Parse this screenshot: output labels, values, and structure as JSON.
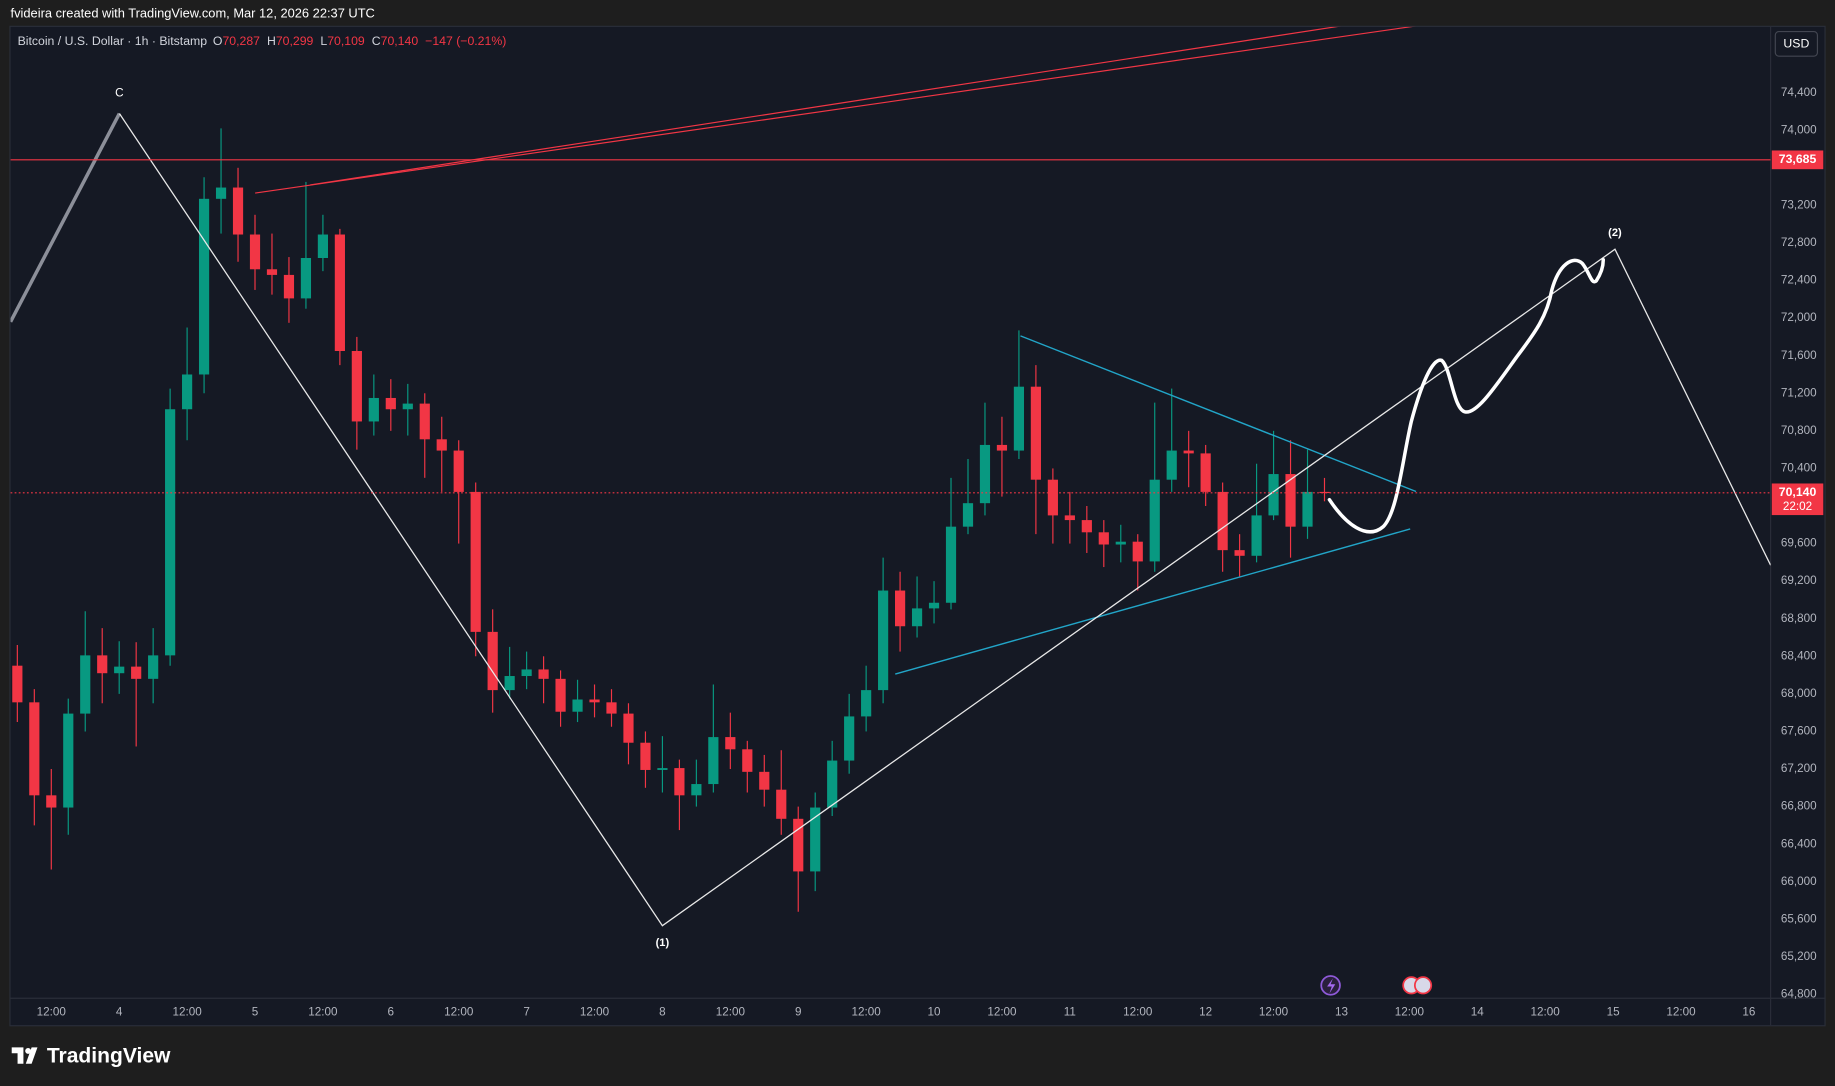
{
  "header": {
    "attribution": "fvideira created with TradingView.com, Mar 12, 2026 22:37 UTC"
  },
  "legend": {
    "symbol": "Bitcoin / U.S. Dollar · 1h · Bitstamp",
    "open_key": "O",
    "open": "70,287",
    "high_key": "H",
    "high": "70,299",
    "low_key": "L",
    "low": "70,109",
    "close_key": "C",
    "close": "70,140",
    "change": "−147 (−0.21%)"
  },
  "currency_button": "USD",
  "footer": {
    "logo": "TradingView"
  },
  "chart_data": {
    "type": "candlestick",
    "up_color": "#089981",
    "down_color": "#f23645",
    "x": [
      3.25,
      3.375,
      3.5,
      3.625,
      3.75,
      3.875,
      4.0,
      4.125,
      4.25,
      4.375,
      4.5,
      4.625,
      4.75,
      4.875,
      5.0,
      5.125,
      5.25,
      5.375,
      5.5,
      5.625,
      5.75,
      5.875,
      6.0,
      6.125,
      6.25,
      6.375,
      6.5,
      6.625,
      6.75,
      6.875,
      7.0,
      7.125,
      7.25,
      7.375,
      7.5,
      7.625,
      7.75,
      7.875,
      8.0,
      8.125,
      8.25,
      8.375,
      8.5,
      8.625,
      8.75,
      8.875,
      9.0,
      9.125,
      9.25,
      9.375,
      9.5,
      9.625,
      9.75,
      9.875,
      10.0,
      10.125,
      10.25,
      10.375,
      10.5,
      10.625,
      10.75,
      10.875,
      11.0,
      11.125,
      11.25,
      11.375,
      11.5,
      11.625,
      11.75,
      11.875,
      12.0,
      12.125,
      12.25,
      12.375,
      12.5,
      12.625,
      12.75,
      12.875
    ],
    "open": [
      68300,
      67910,
      66920,
      66790,
      67790,
      68410,
      68220,
      68290,
      68160,
      68410,
      71030,
      71400,
      73270,
      73390,
      72890,
      72520,
      72460,
      72210,
      72640,
      72890,
      71650,
      70900,
      71150,
      71030,
      71090,
      70710,
      70590,
      70150,
      68660,
      68040,
      68190,
      68260,
      68160,
      67810,
      67940,
      67910,
      67790,
      67480,
      67190,
      67210,
      66920,
      67040,
      67540,
      67410,
      67170,
      66980,
      66670,
      66110,
      66790,
      67290,
      67760,
      68040,
      69100,
      68720,
      68910,
      68970,
      69780,
      70030,
      70650,
      70590,
      71270,
      70280,
      69900,
      69850,
      69720,
      69590,
      69620,
      69410,
      70280,
      70590,
      70560,
      70150,
      69530,
      69470,
      69900,
      70340,
      69780,
      70150
    ],
    "high": [
      68520,
      68050,
      67200,
      67950,
      68880,
      68700,
      68560,
      68550,
      68700,
      71250,
      71900,
      73500,
      74020,
      73600,
      73100,
      72900,
      72650,
      73450,
      73100,
      72950,
      71800,
      71400,
      71350,
      71300,
      71200,
      70950,
      70700,
      70250,
      68900,
      68500,
      68450,
      68400,
      68250,
      68150,
      68100,
      68050,
      67900,
      67600,
      67550,
      67300,
      67300,
      68100,
      67800,
      67500,
      67350,
      67400,
      66800,
      66950,
      67500,
      68000,
      68300,
      69450,
      69300,
      69250,
      69200,
      70300,
      70500,
      71100,
      70950,
      71870,
      71500,
      70400,
      70150,
      70000,
      69850,
      69800,
      69700,
      71100,
      71250,
      70800,
      70650,
      70250,
      69700,
      70450,
      70800,
      70700,
      70600,
      70299
    ],
    "low": [
      67700,
      66600,
      66130,
      66500,
      67600,
      67900,
      68000,
      67440,
      67900,
      68300,
      70700,
      71200,
      72900,
      72600,
      72300,
      72250,
      71950,
      72100,
      72500,
      71500,
      70600,
      70750,
      70800,
      70750,
      70300,
      70150,
      69600,
      68400,
      67800,
      67950,
      68050,
      67900,
      67650,
      67700,
      67750,
      67650,
      67250,
      67000,
      66950,
      66550,
      66800,
      66950,
      67200,
      66950,
      66800,
      66500,
      65680,
      65900,
      66700,
      67150,
      67600,
      67900,
      68450,
      68600,
      68750,
      68900,
      69700,
      69900,
      70100,
      70500,
      69700,
      69600,
      69600,
      69500,
      69350,
      69400,
      69100,
      69300,
      70150,
      70200,
      70000,
      69300,
      69250,
      69400,
      69850,
      69450,
      69650,
      70050
    ],
    "close": [
      67910,
      66920,
      66790,
      67790,
      68410,
      68220,
      68290,
      68160,
      68410,
      71030,
      71400,
      73270,
      73390,
      72890,
      72520,
      72460,
      72210,
      72640,
      72890,
      71650,
      70900,
      71150,
      71030,
      71090,
      70710,
      70590,
      70150,
      68660,
      68040,
      68190,
      68260,
      68160,
      67810,
      67940,
      67910,
      67790,
      67480,
      67190,
      67210,
      66920,
      67040,
      67540,
      67410,
      67170,
      66980,
      66670,
      66110,
      66790,
      67290,
      67760,
      68040,
      69100,
      68720,
      68910,
      68970,
      69780,
      70030,
      70650,
      70590,
      71270,
      70280,
      69900,
      69850,
      69720,
      69590,
      69620,
      69410,
      70280,
      70590,
      70560,
      70150,
      69530,
      69470,
      69900,
      70340,
      69780,
      70150,
      70140
    ],
    "xlim": [
      3.2,
      16.16
    ],
    "xticks": [
      {
        "value": 3.5,
        "label": "12:00"
      },
      4,
      {
        "value": 4.5,
        "label": "12:00"
      },
      5,
      {
        "value": 5.5,
        "label": "12:00"
      },
      6,
      {
        "value": 6.5,
        "label": "12:00"
      },
      7,
      {
        "value": 7.5,
        "label": "12:00"
      },
      8,
      {
        "value": 8.5,
        "label": "12:00"
      },
      9,
      {
        "value": 9.5,
        "label": "12:00"
      },
      10,
      {
        "value": 10.5,
        "label": "12:00"
      },
      11,
      {
        "value": 11.5,
        "label": "12:00"
      },
      12,
      {
        "value": 12.5,
        "label": "12:00"
      },
      13,
      {
        "value": 13.5,
        "label": "12:00"
      },
      14,
      {
        "value": 14.5,
        "label": "12:00"
      },
      15,
      {
        "value": 15.5,
        "label": "12:00"
      },
      16
    ],
    "ylim": [
      64760,
      75100
    ],
    "yticks": [
      {
        "value": 64800,
        "label": "64,800"
      },
      {
        "value": 65200,
        "label": "65,200"
      },
      {
        "value": 65600,
        "label": "65,600"
      },
      {
        "value": 66000,
        "label": "66,000"
      },
      {
        "value": 66400,
        "label": "66,400"
      },
      {
        "value": 66800,
        "label": "66,800"
      },
      {
        "value": 67200,
        "label": "67,200"
      },
      {
        "value": 67600,
        "label": "67,600"
      },
      {
        "value": 68000,
        "label": "68,000"
      },
      {
        "value": 68400,
        "label": "68,400"
      },
      {
        "value": 68800,
        "label": "68,800"
      },
      {
        "value": 69200,
        "label": "69,200"
      },
      {
        "value": 69600,
        "label": "69,600"
      },
      {
        "value": 70400,
        "label": "70,400"
      },
      {
        "value": 70800,
        "label": "70,800"
      },
      {
        "value": 71200,
        "label": "71,200"
      },
      {
        "value": 71600,
        "label": "71,600"
      },
      {
        "value": 72000,
        "label": "72,000"
      },
      {
        "value": 72400,
        "label": "72,400"
      },
      {
        "value": 72800,
        "label": "72,800"
      },
      {
        "value": 73200,
        "label": "73,200"
      },
      {
        "value": 74000,
        "label": "74,000"
      },
      {
        "value": 74400,
        "label": "74,400"
      }
    ],
    "grid": false,
    "price_lines": [
      {
        "value": 73685,
        "label": "73,685",
        "color": "#f23645",
        "style": "solid"
      },
      {
        "value": 70140,
        "label": "70,140",
        "color": "#f23645",
        "style": "dotted",
        "countdown": "22:02"
      }
    ],
    "annotations": [
      "C",
      "(1)",
      "(2)"
    ]
  }
}
